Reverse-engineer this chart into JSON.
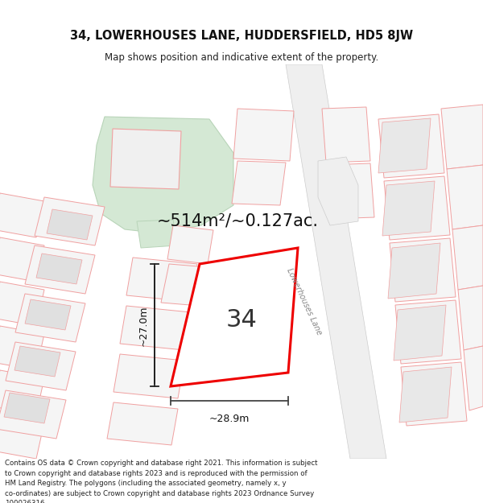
{
  "title": "34, LOWERHOUSES LANE, HUDDERSFIELD, HD5 8JW",
  "subtitle": "Map shows position and indicative extent of the property.",
  "footer": "Contains OS data © Crown copyright and database right 2021. This information is subject\nto Crown copyright and database rights 2023 and is reproduced with the permission of\nHM Land Registry. The polygons (including the associated geometry, namely x, y\nco-ordinates) are subject to Crown copyright and database rights 2023 Ordnance Survey\n100026316.",
  "bg_color": "#ffffff",
  "area_label": "~514m²/~0.127ac.",
  "number_label": "34",
  "width_label": "~28.9m",
  "height_label": "~27.0m",
  "road_label": "Lowerhouses Lane",
  "plot_color": "#ee0000",
  "neighbor_line_color": "#f0a0a0",
  "neighbor_fill": "#e8e8e8",
  "green_fill": "#d4e8d4",
  "green_line": "#b8d4b8"
}
